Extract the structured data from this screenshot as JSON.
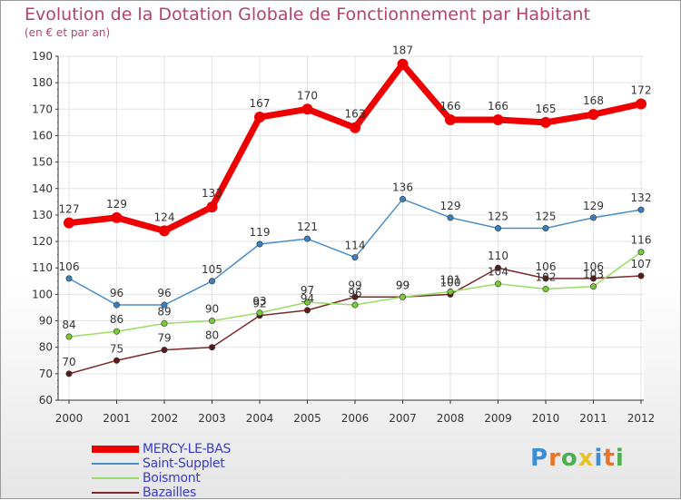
{
  "title": "Evolution de la Dotation Globale de Fonctionnement par Habitant",
  "subtitle": "(en € et par an)",
  "logo": {
    "text": "Proxiti",
    "letters": [
      "P",
      "r",
      "o",
      "x",
      "i",
      "t",
      "i"
    ],
    "colors": [
      "#3a8fd8",
      "#e8732a",
      "#4caf50",
      "#e8c22a",
      "#3a8fd8",
      "#e8732a",
      "#4caf50"
    ]
  },
  "chart_data": {
    "type": "line",
    "title": "Evolution de la Dotation Globale de Fonctionnement par Habitant",
    "ylabel": "(en € et par an)",
    "xlabel": "",
    "ylim": [
      60,
      190
    ],
    "y_ticks": [
      60,
      70,
      80,
      90,
      100,
      110,
      120,
      130,
      140,
      150,
      160,
      170,
      180,
      190
    ],
    "categories": [
      "2000",
      "2001",
      "2002",
      "2003",
      "2004",
      "2005",
      "2006",
      "2007",
      "2008",
      "2009",
      "2010",
      "2011",
      "2012"
    ],
    "grid": true,
    "legend_position": "bottom-left",
    "series": [
      {
        "name": "MERCY-LE-BAS",
        "color": "#ee0000",
        "marker": "#ee0000",
        "values": [
          127,
          129,
          124,
          133,
          167,
          170,
          163,
          187,
          166,
          166,
          165,
          168,
          172
        ]
      },
      {
        "name": "Saint-Supplet",
        "color": "#4a8ec8",
        "marker": "#3a7fc0",
        "values": [
          106,
          96,
          96,
          105,
          119,
          121,
          114,
          136,
          129,
          125,
          125,
          129,
          132
        ]
      },
      {
        "name": "Boismont",
        "color": "#99dd66",
        "marker": "#77cc33",
        "values": [
          84,
          86,
          89,
          90,
          93,
          97,
          96,
          99,
          101,
          104,
          102,
          103,
          116
        ]
      },
      {
        "name": "Bazailles",
        "color": "#7a2a2a",
        "marker": "#5a1a1a",
        "values": [
          70,
          75,
          79,
          80,
          92,
          94,
          99,
          99,
          100,
          110,
          106,
          106,
          107
        ]
      }
    ]
  }
}
